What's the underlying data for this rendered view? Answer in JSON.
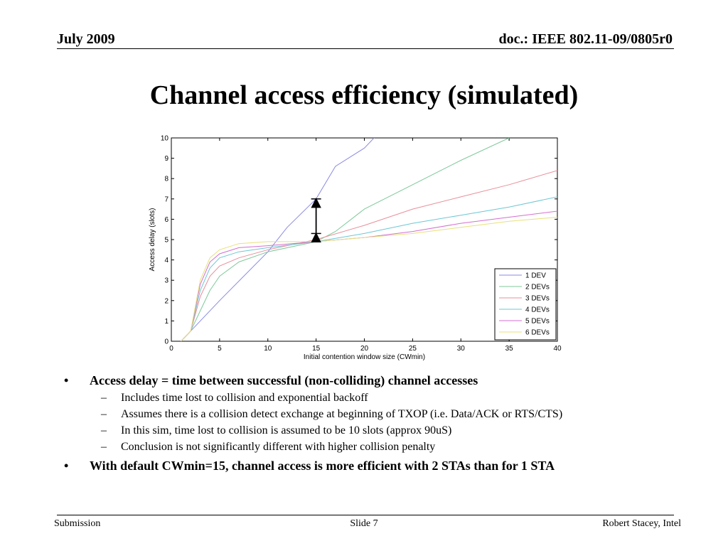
{
  "header": {
    "date": "July 2009",
    "doc_id": "doc.: IEEE 802.11-09/0805r0"
  },
  "title": "Channel access efficiency (simulated)",
  "chart_data": {
    "type": "line",
    "xlabel": "Initial contention window size (CWmin)",
    "ylabel": "Access delay (slots)",
    "xlim": [
      0,
      40
    ],
    "ylim": [
      0,
      10
    ],
    "xticks": [
      0,
      5,
      10,
      15,
      20,
      25,
      30,
      35,
      40
    ],
    "yticks": [
      0,
      1,
      2,
      3,
      4,
      5,
      6,
      7,
      8,
      9,
      10
    ],
    "legend_position": "bottom-right",
    "grid": false,
    "annotation": {
      "type": "double-arrow",
      "x": 15,
      "y_from": 5.3,
      "y_to": 7.0
    },
    "series": [
      {
        "name": "1 DEV",
        "color": "#8a8ae6",
        "x": [
          1,
          2,
          5,
          10,
          12,
          15,
          17,
          20,
          21,
          22
        ],
        "y": [
          0,
          0.5,
          2.0,
          4.4,
          5.6,
          7.0,
          8.6,
          9.5,
          10,
          10.4
        ]
      },
      {
        "name": "2 DEVs",
        "color": "#7fc99a",
        "x": [
          1,
          2,
          3,
          4,
          5,
          7,
          10,
          15,
          17,
          20,
          25,
          30,
          35,
          36
        ],
        "y": [
          0,
          0.5,
          1.5,
          2.5,
          3.2,
          3.9,
          4.4,
          4.9,
          5.4,
          6.5,
          7.7,
          8.9,
          10,
          10.3
        ]
      },
      {
        "name": "3 DEVs",
        "color": "#e88f9a",
        "x": [
          1,
          2,
          3,
          4,
          5,
          7,
          10,
          15,
          20,
          25,
          30,
          35,
          40
        ],
        "y": [
          0,
          0.5,
          2.2,
          3.2,
          3.7,
          4.1,
          4.5,
          5.0,
          5.7,
          6.5,
          7.1,
          7.7,
          8.4
        ]
      },
      {
        "name": "4 DEVs",
        "color": "#6cc7d4",
        "x": [
          1,
          2,
          3,
          4,
          5,
          7,
          10,
          15,
          20,
          25,
          30,
          35,
          40
        ],
        "y": [
          0,
          0.5,
          2.5,
          3.6,
          4.1,
          4.4,
          4.6,
          4.9,
          5.3,
          5.8,
          6.2,
          6.6,
          7.1
        ]
      },
      {
        "name": "5 DEVs",
        "color": "#d46fd0",
        "x": [
          1,
          2,
          3,
          4,
          5,
          7,
          10,
          15,
          20,
          25,
          30,
          35,
          40
        ],
        "y": [
          0,
          0.5,
          2.8,
          3.9,
          4.3,
          4.6,
          4.7,
          4.9,
          5.1,
          5.4,
          5.8,
          6.1,
          6.4
        ]
      },
      {
        "name": "6 DEVs",
        "color": "#e8e07a",
        "x": [
          1,
          2,
          3,
          4,
          5,
          7,
          10,
          15,
          20,
          25,
          30,
          35,
          40
        ],
        "y": [
          0,
          0.5,
          3.0,
          4.1,
          4.5,
          4.8,
          4.9,
          4.9,
          5.1,
          5.3,
          5.6,
          5.9,
          6.1
        ]
      }
    ]
  },
  "bullets": [
    {
      "text": "Access delay = time between successful (non-colliding) channel accesses",
      "sub": [
        "Includes time lost to collision and exponential backoff",
        "Assumes there is a collision detect exchange at beginning of TXOP (i.e. Data/ACK or RTS/CTS)",
        "In this sim, time lost to collision is assumed to be 10 slots (approx 90uS)",
        "Conclusion is not significantly different with higher collision penalty"
      ]
    },
    {
      "text": "With default CWmin=15, channel access is more efficient with 2 STAs than for 1 STA",
      "sub": []
    }
  ],
  "bullet_marker": "•",
  "sub_marker": "–",
  "footer": {
    "left": "Submission",
    "center": "Slide 7",
    "right": "Robert Stacey, Intel"
  }
}
